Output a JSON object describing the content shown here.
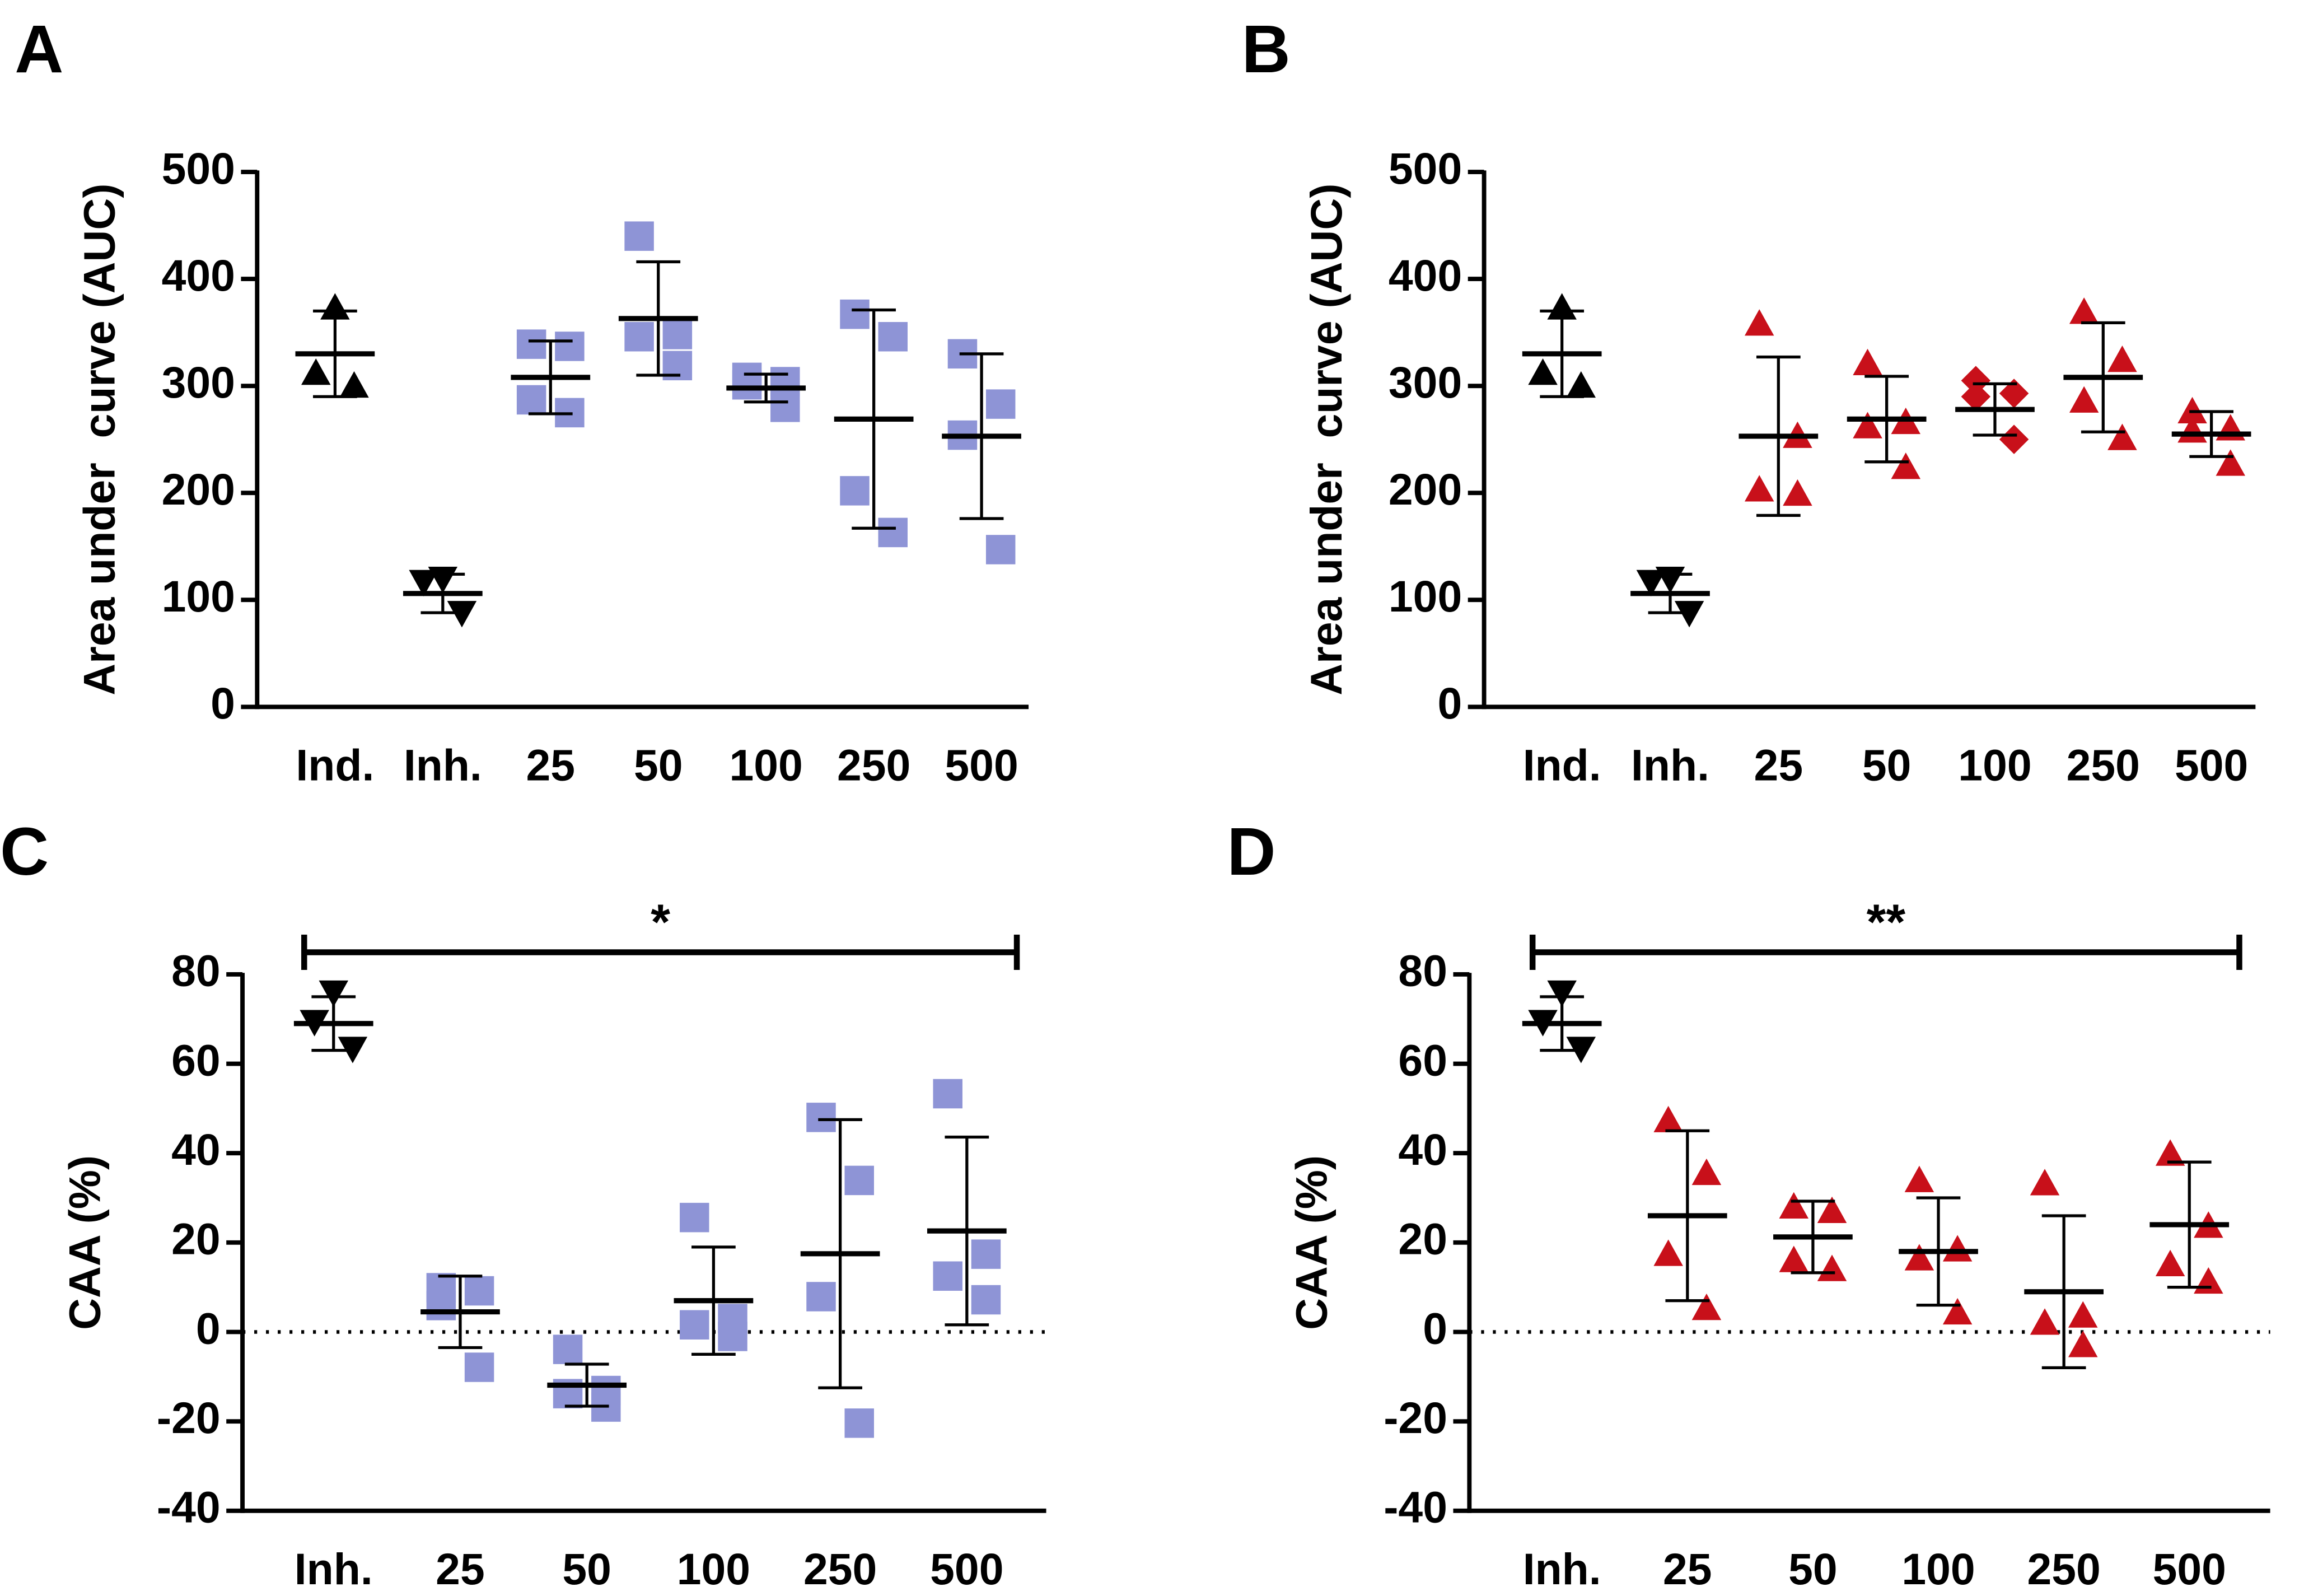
{
  "chart_data": [
    {
      "type": "dot",
      "panel": "A",
      "ylabel": "Area under  curve (AUC)",
      "categories": [
        "Ind.",
        "Inh.",
        "25",
        "50",
        "100",
        "250",
        "500"
      ],
      "ylim": [
        0,
        500
      ],
      "yticks": [
        0,
        100,
        200,
        300,
        400,
        500
      ],
      "zero_line": false,
      "groups": [
        {
          "marker": "triangle-up",
          "color": "#000000",
          "points": [
            373,
            312,
            300
          ],
          "mean": 330,
          "sd": 40
        },
        {
          "marker": "triangle-down",
          "color": "#000000",
          "points": [
            120,
            117,
            88
          ],
          "mean": 106,
          "sd": 18
        },
        {
          "marker": "square",
          "color": "#8e94d6",
          "points": [
            339,
            337,
            287,
            275
          ],
          "mean": 308,
          "sd": 34
        },
        {
          "marker": "square",
          "color": "#8e94d6",
          "points": [
            440,
            348,
            346,
            319
          ],
          "mean": 363,
          "sd": 53
        },
        {
          "marker": "square",
          "color": "#8e94d6",
          "points": [
            308,
            304,
            301,
            280
          ],
          "mean": 298,
          "sd": 13
        },
        {
          "marker": "square",
          "color": "#8e94d6",
          "points": [
            367,
            346,
            202,
            163
          ],
          "mean": 269,
          "sd": 102
        },
        {
          "marker": "square",
          "color": "#8e94d6",
          "points": [
            330,
            283,
            254,
            147
          ],
          "mean": 253,
          "sd": 77
        }
      ]
    },
    {
      "type": "dot",
      "panel": "B",
      "ylabel": "Area under  curve (AUC)",
      "categories": [
        "Ind.",
        "Inh.",
        "25",
        "50",
        "100",
        "250",
        "500"
      ],
      "ylim": [
        0,
        500
      ],
      "yticks": [
        0,
        100,
        200,
        300,
        400,
        500
      ],
      "zero_line": false,
      "groups": [
        {
          "marker": "triangle-up",
          "color": "#000000",
          "points": [
            373,
            312,
            300
          ],
          "mean": 330,
          "sd": 40
        },
        {
          "marker": "triangle-down",
          "color": "#000000",
          "points": [
            120,
            117,
            88
          ],
          "mean": 106,
          "sd": 18
        },
        {
          "marker": "triangle-up",
          "color": "#c8101a",
          "points": [
            358,
            253,
            203,
            199
          ],
          "mean": 253,
          "sd": 74
        },
        {
          "marker": "triangle-up",
          "color": "#c8101a",
          "points": [
            321,
            266,
            262,
            224
          ],
          "mean": 269,
          "sd": 40
        },
        {
          "marker": "diamond",
          "color": "#c8101a",
          "points": [
            305,
            293,
            290,
            250
          ],
          "mean": 278,
          "sd": 24
        },
        {
          "marker": "triangle-up",
          "color": "#c8101a",
          "points": [
            369,
            324,
            286,
            251
          ],
          "mean": 308,
          "sd": 51
        },
        {
          "marker": "triangle-up",
          "color": "#c8101a",
          "points": [
            276,
            260,
            258,
            227
          ],
          "mean": 255,
          "sd": 21
        }
      ]
    },
    {
      "type": "dot",
      "panel": "C",
      "ylabel": "CAA (%)",
      "annotation": "*",
      "categories": [
        "Inh.",
        "25",
        "50",
        "100",
        "250",
        "500"
      ],
      "ylim": [
        -40,
        80
      ],
      "yticks": [
        -40,
        -20,
        0,
        20,
        40,
        60,
        80
      ],
      "zero_line": true,
      "groups": [
        {
          "marker": "triangle-down",
          "color": "#000000",
          "points": [
            76,
            69.4,
            63.4
          ],
          "mean": 69,
          "sd": 6
        },
        {
          "marker": "square",
          "color": "#8e94d6",
          "points": [
            9.9,
            9.2,
            5.9,
            -7.9
          ],
          "mean": 4.5,
          "sd": 8
        },
        {
          "marker": "square",
          "color": "#8e94d6",
          "points": [
            -3.9,
            -13.1,
            -13.8,
            -16.8
          ],
          "mean": -11.9,
          "sd": 4.7
        },
        {
          "marker": "square",
          "color": "#8e94d6",
          "points": [
            25.6,
            3,
            1.6,
            -1
          ],
          "mean": 7,
          "sd": 12
        },
        {
          "marker": "square",
          "color": "#8e94d6",
          "points": [
            48,
            33.9,
            7.9,
            -20.4
          ],
          "mean": 17.5,
          "sd": 30
        },
        {
          "marker": "square",
          "color": "#8e94d6",
          "points": [
            53.3,
            17.4,
            12.5,
            7.2
          ],
          "mean": 22.6,
          "sd": 21
        }
      ]
    },
    {
      "type": "dot",
      "panel": "D",
      "ylabel": "CAA (%)",
      "annotation": "**",
      "categories": [
        "Inh.",
        "25",
        "50",
        "100",
        "250",
        "500"
      ],
      "ylim": [
        -40,
        80
      ],
      "yticks": [
        -40,
        -20,
        0,
        20,
        40,
        60,
        80
      ],
      "zero_line": true,
      "groups": [
        {
          "marker": "triangle-down",
          "color": "#000000",
          "points": [
            76,
            69.4,
            63.4
          ],
          "mean": 69,
          "sd": 6
        },
        {
          "marker": "triangle-up",
          "color": "#c8101a",
          "points": [
            47.3,
            35.5,
            17.4,
            5.3
          ],
          "mean": 26,
          "sd": 19
        },
        {
          "marker": "triangle-up",
          "color": "#c8101a",
          "points": [
            28,
            27,
            16,
            14
          ],
          "mean": 21.25,
          "sd": 8
        },
        {
          "marker": "triangle-up",
          "color": "#c8101a",
          "points": [
            33.9,
            18.4,
            16.4,
            4.3
          ],
          "mean": 18,
          "sd": 12
        },
        {
          "marker": "triangle-up",
          "color": "#c8101a",
          "points": [
            33.2,
            3.6,
            2,
            -3
          ],
          "mean": 9,
          "sd": 17
        },
        {
          "marker": "triangle-up",
          "color": "#c8101a",
          "points": [
            39.8,
            23.7,
            15.1,
            11.2
          ],
          "mean": 24,
          "sd": 14
        }
      ]
    }
  ]
}
